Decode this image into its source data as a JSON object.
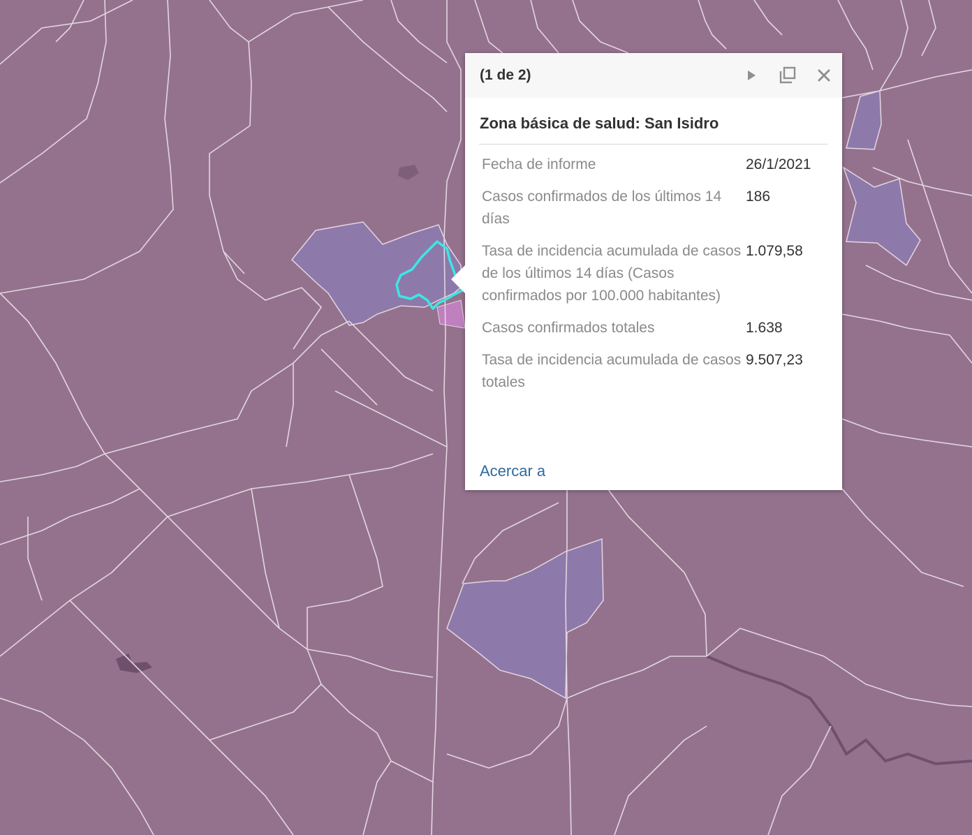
{
  "map": {
    "colors": {
      "base": "#94728d",
      "boundary": "#e3d6e0",
      "highlight_zone": "#8e79ab",
      "pink_zone": "#c07fbf",
      "selection": "#3ce7e3",
      "river": "#6f506c"
    }
  },
  "popup": {
    "count_label": "(1 de 2)",
    "title": "Zona básica de salud: San Isidro",
    "icons": {
      "next": "play-icon",
      "maximize": "maximize-icon",
      "close": "close-icon"
    },
    "fields": [
      {
        "label": "Fecha de informe",
        "value": "26/1/2021"
      },
      {
        "label": "Casos confirmados de los últimos 14 días",
        "value": "186"
      },
      {
        "label": "Tasa de incidencia acumulada de casos de los últimos 14 días (Casos confirmados por 100.000 habitantes)",
        "value": "1.079,58"
      },
      {
        "label": "Casos confirmados totales",
        "value": "1.638"
      },
      {
        "label": "Tasa de incidencia acumulada de casos totales",
        "value": "9.507,23"
      }
    ],
    "zoom_link": "Acercar a"
  }
}
